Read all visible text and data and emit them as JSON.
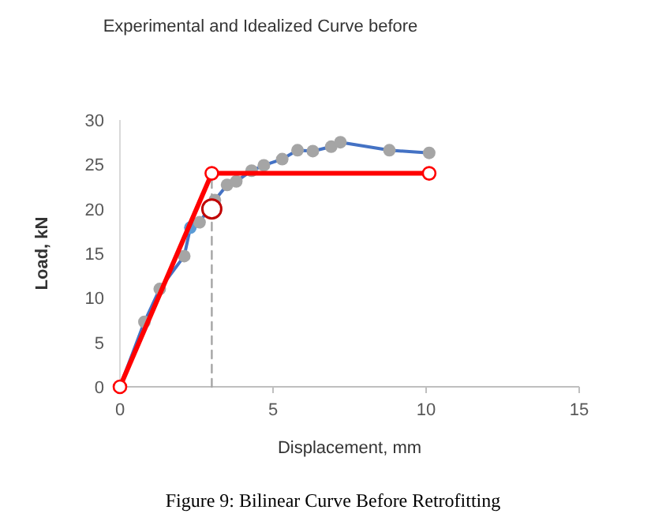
{
  "chart_data": {
    "type": "line",
    "title": "Experimental and Idealized Curve before",
    "xlabel": "Displacement, mm",
    "ylabel": "Load, kN",
    "annotations": [
      "Figure 9: Bilinear Curve Before Retrofitting"
    ],
    "xlim": [
      0,
      15
    ],
    "xticks": [
      0,
      5,
      10,
      15
    ],
    "ylim": [
      0,
      30
    ],
    "yticks": [
      0,
      5,
      10,
      15,
      20,
      25,
      30
    ],
    "grid": false,
    "series": [
      {
        "color": "#4472c4",
        "marker": "circle",
        "x": [
          0,
          0.8,
          1.3,
          2.1,
          2.3,
          2.6,
          3.1,
          3.5,
          3.8,
          4.3,
          4.7,
          5.3,
          5.8,
          6.3,
          6.9,
          7.2,
          8.8,
          10.1
        ],
        "values": [
          0,
          7.3,
          11,
          14.7,
          17.9,
          18.5,
          21,
          22.7,
          23.1,
          24.3,
          24.9,
          25.6,
          26.6,
          26.5,
          27,
          27.5,
          26.6,
          26.3
        ],
        "colors": [
          "#a5a5a5",
          "#a5a5a5",
          "#a5a5a5",
          "#a5a5a5",
          "#5b9bd5",
          "#a5a5a5",
          "#a5a5a5",
          "#a5a5a5",
          "#a5a5a5",
          "#a5a5a5",
          "#a5a5a5",
          "#a5a5a5",
          "#a5a5a5",
          "#a5a5a5",
          "#a5a5a5",
          "#a5a5a5",
          "#a5a5a5",
          "#a5a5a5"
        ]
      },
      {
        "color": "#a5a5a5",
        "line_style": "dashed",
        "x": [
          3,
          3
        ],
        "values": [
          0,
          24
        ]
      },
      {
        "color": "#ff0000",
        "marker": "circle",
        "x": [
          0,
          3,
          10.1
        ],
        "values": [
          0,
          24,
          24
        ]
      },
      {
        "type": "scatter",
        "color": "#c00000",
        "marker": "circle",
        "x": [
          3
        ],
        "values": [
          20
        ]
      }
    ]
  }
}
